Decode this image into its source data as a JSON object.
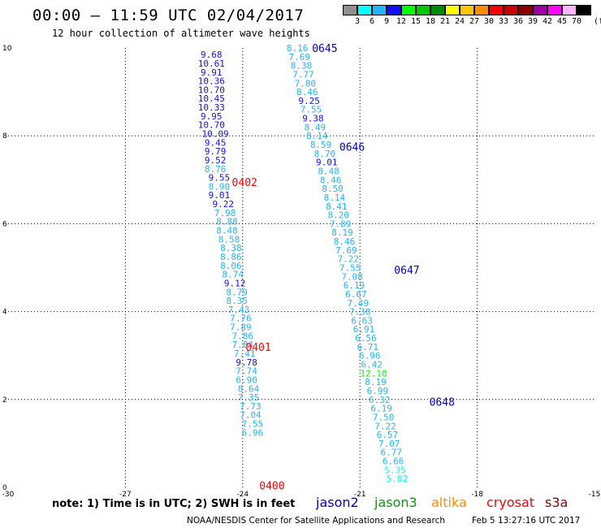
{
  "header": {
    "title": "00:00 – 11:59 UTC 02/04/2017",
    "subtitle": "12 hour collection of altimeter wave heights"
  },
  "colorbar": {
    "unit": "(ft)",
    "bins": [
      {
        "label": "3",
        "color": "#909090"
      },
      {
        "label": "6",
        "color": "#00ffff"
      },
      {
        "label": "9",
        "color": "#22b4ff"
      },
      {
        "label": "12",
        "color": "#1010ff"
      },
      {
        "label": "15",
        "color": "#00ff00"
      },
      {
        "label": "18",
        "color": "#00c800"
      },
      {
        "label": "21",
        "color": "#008c00"
      },
      {
        "label": "24",
        "color": "#ffff00"
      },
      {
        "label": "27",
        "color": "#ffc800"
      },
      {
        "label": "30",
        "color": "#ff8c00"
      },
      {
        "label": "33",
        "color": "#ff0000"
      },
      {
        "label": "36",
        "color": "#c80000"
      },
      {
        "label": "39",
        "color": "#8c0000"
      },
      {
        "label": "42",
        "color": "#a000a0"
      },
      {
        "label": "45",
        "color": "#ff00ff"
      },
      {
        "label": "70",
        "color": "#ffb4ff"
      },
      {
        "label": "",
        "color": "#000000"
      }
    ]
  },
  "chart_data": {
    "type": "scatter",
    "xlim": [
      -30,
      -15
    ],
    "ylim": [
      0,
      10
    ],
    "x_ticks": [
      "-30",
      "-27",
      "-24",
      "-21",
      "-18",
      "-15"
    ],
    "y_ticks": [
      "0",
      "2",
      "4",
      "6",
      "8",
      "10"
    ],
    "grid": true,
    "series": [
      {
        "name": "jason2",
        "points": [
          {
            "x": -24.8,
            "y": 9.85,
            "v": "9.68",
            "c": "#1010ff"
          },
          {
            "x": -24.8,
            "y": 9.65,
            "v": "10.61",
            "c": "#1010ff"
          },
          {
            "x": -24.8,
            "y": 9.45,
            "v": "9.91",
            "c": "#1010ff"
          },
          {
            "x": -24.8,
            "y": 9.25,
            "v": "10.36",
            "c": "#1010ff"
          },
          {
            "x": -24.8,
            "y": 9.05,
            "v": "10.70",
            "c": "#1010ff"
          },
          {
            "x": -24.8,
            "y": 8.85,
            "v": "10.45",
            "c": "#1010ff"
          },
          {
            "x": -24.8,
            "y": 8.65,
            "v": "10.33",
            "c": "#1010ff"
          },
          {
            "x": -24.8,
            "y": 8.45,
            "v": "9.95",
            "c": "#1010ff"
          },
          {
            "x": -24.8,
            "y": 8.25,
            "v": "10.70",
            "c": "#1010ff"
          },
          {
            "x": -24.7,
            "y": 8.05,
            "v": "10.09",
            "c": "#1010ff"
          },
          {
            "x": -24.7,
            "y": 7.85,
            "v": "9.45",
            "c": "#1010ff"
          },
          {
            "x": -24.7,
            "y": 7.65,
            "v": "9.79",
            "c": "#1010ff"
          },
          {
            "x": -24.7,
            "y": 7.45,
            "v": "9.52",
            "c": "#1010ff"
          },
          {
            "x": -24.7,
            "y": 7.25,
            "v": "8.76",
            "c": "#22b4ff"
          },
          {
            "x": -24.6,
            "y": 7.05,
            "v": "9.55",
            "c": "#1010ff"
          },
          {
            "x": -24.6,
            "y": 6.85,
            "v": "8.90",
            "c": "#22b4ff"
          },
          {
            "x": -24.6,
            "y": 6.65,
            "v": "9.01",
            "c": "#1010ff"
          },
          {
            "x": -24.5,
            "y": 6.45,
            "v": "9.22",
            "c": "#1010ff"
          },
          {
            "x": -24.45,
            "y": 6.25,
            "v": "7.98",
            "c": "#22b4ff"
          },
          {
            "x": -24.4,
            "y": 6.05,
            "v": "8.88",
            "c": "#22b4ff"
          },
          {
            "x": -24.4,
            "y": 5.85,
            "v": "8.48",
            "c": "#22b4ff"
          },
          {
            "x": -24.35,
            "y": 5.65,
            "v": "8.58",
            "c": "#22b4ff"
          },
          {
            "x": -24.3,
            "y": 5.45,
            "v": "8.38",
            "c": "#22b4ff"
          },
          {
            "x": -24.3,
            "y": 5.25,
            "v": "8.86",
            "c": "#22b4ff"
          },
          {
            "x": -24.3,
            "y": 5.05,
            "v": "8.06",
            "c": "#22b4ff"
          },
          {
            "x": -24.25,
            "y": 4.85,
            "v": "8.74",
            "c": "#22b4ff"
          },
          {
            "x": -24.2,
            "y": 4.65,
            "v": "9.12",
            "c": "#1010ff"
          },
          {
            "x": -24.15,
            "y": 4.45,
            "v": "8.79",
            "c": "#22b4ff"
          },
          {
            "x": -24.15,
            "y": 4.25,
            "v": "8.35",
            "c": "#22b4ff"
          },
          {
            "x": -24.1,
            "y": 4.05,
            "v": "7.43",
            "c": "#22b4ff"
          },
          {
            "x": -24.05,
            "y": 3.85,
            "v": "7.76",
            "c": "#22b4ff"
          },
          {
            "x": -24.05,
            "y": 3.65,
            "v": "7.89",
            "c": "#22b4ff"
          },
          {
            "x": -24.0,
            "y": 3.45,
            "v": "7.86",
            "c": "#22b4ff"
          },
          {
            "x": -24.0,
            "y": 3.25,
            "v": "7.84",
            "c": "#22b4ff"
          },
          {
            "x": -23.95,
            "y": 3.05,
            "v": "7.41",
            "c": "#22b4ff"
          },
          {
            "x": -23.9,
            "y": 2.85,
            "v": "9.78",
            "c": "#1010ff"
          },
          {
            "x": -23.9,
            "y": 2.65,
            "v": "7.74",
            "c": "#22b4ff"
          },
          {
            "x": -23.9,
            "y": 2.45,
            "v": "6.90",
            "c": "#22b4ff"
          },
          {
            "x": -23.85,
            "y": 2.25,
            "v": "8.64",
            "c": "#22b4ff"
          },
          {
            "x": -23.85,
            "y": 2.05,
            "v": "7.35",
            "c": "#22b4ff"
          },
          {
            "x": -23.8,
            "y": 1.85,
            "v": "7.73",
            "c": "#22b4ff"
          },
          {
            "x": -23.8,
            "y": 1.65,
            "v": "7.04",
            "c": "#22b4ff"
          },
          {
            "x": -23.75,
            "y": 1.45,
            "v": "7.55",
            "c": "#22b4ff"
          },
          {
            "x": -23.75,
            "y": 1.25,
            "v": "6.96",
            "c": "#22b4ff"
          },
          {
            "x": -22.6,
            "y": 10.0,
            "v": "8.16",
            "c": "#22b4ff"
          },
          {
            "x": -22.55,
            "y": 9.8,
            "v": "7.69",
            "c": "#22b4ff"
          },
          {
            "x": -22.5,
            "y": 9.6,
            "v": "8.38",
            "c": "#22b4ff"
          },
          {
            "x": -22.45,
            "y": 9.4,
            "v": "7.77",
            "c": "#22b4ff"
          },
          {
            "x": -22.4,
            "y": 9.2,
            "v": "7.80",
            "c": "#22b4ff"
          },
          {
            "x": -22.35,
            "y": 9.0,
            "v": "8.46",
            "c": "#22b4ff"
          },
          {
            "x": -22.3,
            "y": 8.8,
            "v": "9.25",
            "c": "#1010ff"
          },
          {
            "x": -22.25,
            "y": 8.6,
            "v": "7.55",
            "c": "#22b4ff"
          },
          {
            "x": -22.2,
            "y": 8.4,
            "v": "9.38",
            "c": "#1010ff"
          },
          {
            "x": -22.15,
            "y": 8.2,
            "v": "8.49",
            "c": "#22b4ff"
          },
          {
            "x": -22.1,
            "y": 8.0,
            "v": "8.14",
            "c": "#22b4ff"
          },
          {
            "x": -22.0,
            "y": 7.8,
            "v": "8.59",
            "c": "#22b4ff"
          },
          {
            "x": -21.9,
            "y": 7.6,
            "v": "8.70",
            "c": "#22b4ff"
          },
          {
            "x": -21.85,
            "y": 7.4,
            "v": "9.01",
            "c": "#1010ff"
          },
          {
            "x": -21.8,
            "y": 7.2,
            "v": "8.48",
            "c": "#22b4ff"
          },
          {
            "x": -21.75,
            "y": 7.0,
            "v": "8.46",
            "c": "#22b4ff"
          },
          {
            "x": -21.7,
            "y": 6.8,
            "v": "8.50",
            "c": "#22b4ff"
          },
          {
            "x": -21.65,
            "y": 6.6,
            "v": "8.14",
            "c": "#22b4ff"
          },
          {
            "x": -21.6,
            "y": 6.4,
            "v": "8.41",
            "c": "#22b4ff"
          },
          {
            "x": -21.55,
            "y": 6.2,
            "v": "8.20",
            "c": "#22b4ff"
          },
          {
            "x": -21.5,
            "y": 6.0,
            "v": "7.89",
            "c": "#22b4ff"
          },
          {
            "x": -21.45,
            "y": 5.8,
            "v": "8.19",
            "c": "#22b4ff"
          },
          {
            "x": -21.4,
            "y": 5.6,
            "v": "8.46",
            "c": "#22b4ff"
          },
          {
            "x": -21.35,
            "y": 5.4,
            "v": "7.69",
            "c": "#22b4ff"
          },
          {
            "x": -21.3,
            "y": 5.2,
            "v": "7.22",
            "c": "#22b4ff"
          },
          {
            "x": -21.25,
            "y": 5.0,
            "v": "7.55",
            "c": "#22b4ff"
          },
          {
            "x": -21.2,
            "y": 4.8,
            "v": "7.08",
            "c": "#22b4ff"
          },
          {
            "x": -21.15,
            "y": 4.6,
            "v": "6.19",
            "c": "#22b4ff"
          },
          {
            "x": -21.1,
            "y": 4.4,
            "v": "6.67",
            "c": "#22b4ff"
          },
          {
            "x": -21.05,
            "y": 4.2,
            "v": "7.49",
            "c": "#22b4ff"
          },
          {
            "x": -21.0,
            "y": 4.0,
            "v": "7.38",
            "c": "#22b4ff"
          },
          {
            "x": -20.95,
            "y": 3.8,
            "v": "6.63",
            "c": "#22b4ff"
          },
          {
            "x": -20.9,
            "y": 3.6,
            "v": "6.91",
            "c": "#22b4ff"
          },
          {
            "x": -20.85,
            "y": 3.4,
            "v": "6.56",
            "c": "#22b4ff"
          },
          {
            "x": -20.8,
            "y": 3.2,
            "v": "6.71",
            "c": "#22b4ff"
          },
          {
            "x": -20.75,
            "y": 3.0,
            "v": "6.96",
            "c": "#22b4ff"
          },
          {
            "x": -20.7,
            "y": 2.8,
            "v": "6.42",
            "c": "#22b4ff"
          },
          {
            "x": -20.65,
            "y": 2.6,
            "v": "12.10",
            "c": "#00ff00"
          },
          {
            "x": -20.6,
            "y": 2.4,
            "v": "8.19",
            "c": "#22b4ff"
          },
          {
            "x": -20.55,
            "y": 2.2,
            "v": "6.99",
            "c": "#22b4ff"
          },
          {
            "x": -20.5,
            "y": 2.0,
            "v": "6.32",
            "c": "#22b4ff"
          },
          {
            "x": -20.45,
            "y": 1.8,
            "v": "6.19",
            "c": "#22b4ff"
          },
          {
            "x": -20.4,
            "y": 1.6,
            "v": "7.50",
            "c": "#22b4ff"
          },
          {
            "x": -20.35,
            "y": 1.4,
            "v": "7.22",
            "c": "#22b4ff"
          },
          {
            "x": -20.3,
            "y": 1.2,
            "v": "6.57",
            "c": "#22b4ff"
          },
          {
            "x": -20.25,
            "y": 1.0,
            "v": "7.07",
            "c": "#22b4ff"
          },
          {
            "x": -20.2,
            "y": 0.8,
            "v": "6.77",
            "c": "#22b4ff"
          },
          {
            "x": -20.15,
            "y": 0.6,
            "v": "6.66",
            "c": "#22b4ff"
          },
          {
            "x": -20.1,
            "y": 0.4,
            "v": "5.35",
            "c": "#00ffff"
          },
          {
            "x": -20.05,
            "y": 0.2,
            "v": "5.82",
            "c": "#00ffff"
          }
        ]
      }
    ],
    "time_labels": [
      {
        "x": -21.9,
        "y": 10.0,
        "t": "0645",
        "c": "#0000c8"
      },
      {
        "x": -21.2,
        "y": 7.75,
        "t": "0646",
        "c": "#0000c8"
      },
      {
        "x": -19.8,
        "y": 4.95,
        "t": "0647",
        "c": "#0000c8"
      },
      {
        "x": -18.9,
        "y": 1.95,
        "t": "0648",
        "c": "#0000c8"
      },
      {
        "x": -23.95,
        "y": 6.95,
        "t": "0402",
        "c": "#ff0000"
      },
      {
        "x": -23.6,
        "y": 3.2,
        "t": "0401",
        "c": "#ff0000"
      },
      {
        "x": -23.25,
        "y": 0.05,
        "t": "0400",
        "c": "#ff0000"
      }
    ]
  },
  "footer": {
    "note": "note: 1) Time is in UTC; 2) SWH is in feet",
    "satellites": [
      {
        "name": "jason2",
        "color": "#0000c8"
      },
      {
        "name": "jason3",
        "color": "#00a000"
      },
      {
        "name": "altika",
        "color": "#ff8c00"
      },
      {
        "name": "cryosat",
        "color": "#ff0000"
      },
      {
        "name": "s3a",
        "color": "#8b0000"
      }
    ],
    "credit": "NOAA/NESDIS Center for Satellite Applications and Research",
    "timestamp": "Feb  5 13:27:16 UTC 2017"
  }
}
